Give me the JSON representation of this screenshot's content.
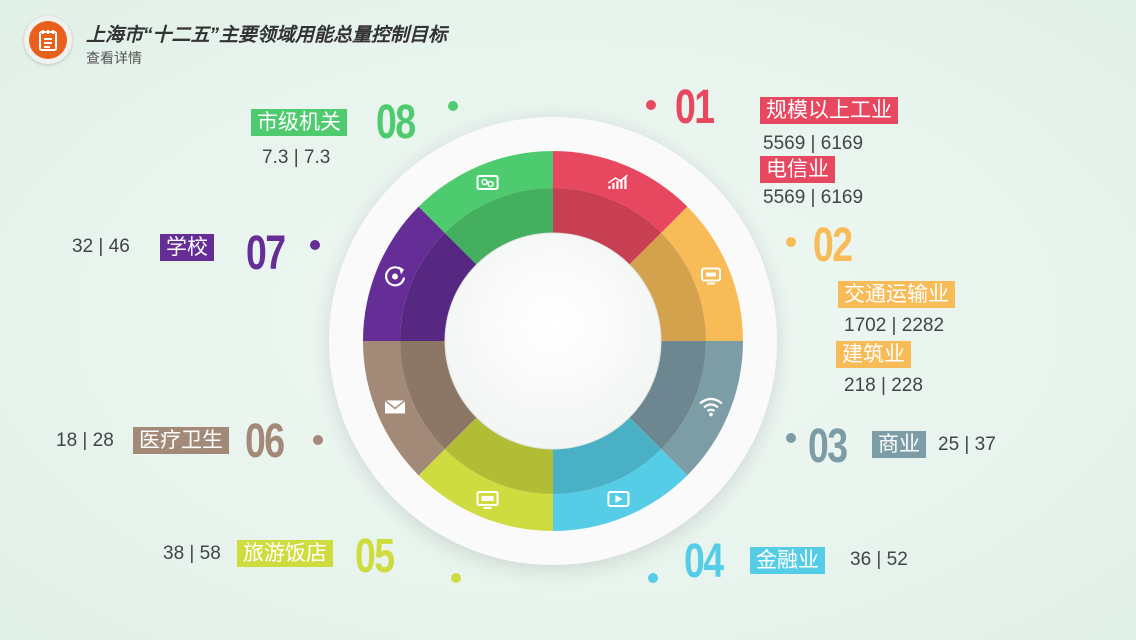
{
  "header": {
    "title": "上海市“十二五”主要领域用能总量控制目标",
    "subtitle": "查看详情",
    "logo_icon": "notepad-icon",
    "logo_color": "#e8601c"
  },
  "sectors": [
    {
      "num": "01",
      "color": "#e8485f",
      "icon": "bar-chart-icon",
      "items": [
        {
          "label": "规模以上工业",
          "value": "5569 | 6169"
        },
        {
          "label": "电信业",
          "value": "5569 | 6169"
        }
      ]
    },
    {
      "num": "02",
      "color": "#f7bb58",
      "icon": "monitor-icon",
      "items": [
        {
          "label": "交通运输业",
          "value": "1702 | 2282"
        },
        {
          "label": "建筑业",
          "value": "218 | 228"
        }
      ]
    },
    {
      "num": "03",
      "color": "#7d9da6",
      "icon": "wifi-icon",
      "items": [
        {
          "label": "商业",
          "value": "25 | 37"
        }
      ]
    },
    {
      "num": "04",
      "color": "#56cde6",
      "icon": "play-icon",
      "items": [
        {
          "label": "金融业",
          "value": "36 | 52"
        }
      ]
    },
    {
      "num": "05",
      "color": "#cfdc3f",
      "icon": "screen-icon",
      "items": [
        {
          "label": "旅游饭店",
          "value": "38 | 58"
        }
      ]
    },
    {
      "num": "06",
      "color": "#a38a78",
      "icon": "mail-icon",
      "items": [
        {
          "label": "医疗卫生",
          "value": "18 | 28"
        }
      ]
    },
    {
      "num": "07",
      "color": "#652e97",
      "icon": "refresh-icon",
      "items": [
        {
          "label": "学校",
          "value": "32 | 46"
        }
      ]
    },
    {
      "num": "08",
      "color": "#4fcb6f",
      "icon": "gear-monitor-icon",
      "items": [
        {
          "label": "市级机关",
          "value": "7.3 | 7.3"
        }
      ]
    }
  ]
}
